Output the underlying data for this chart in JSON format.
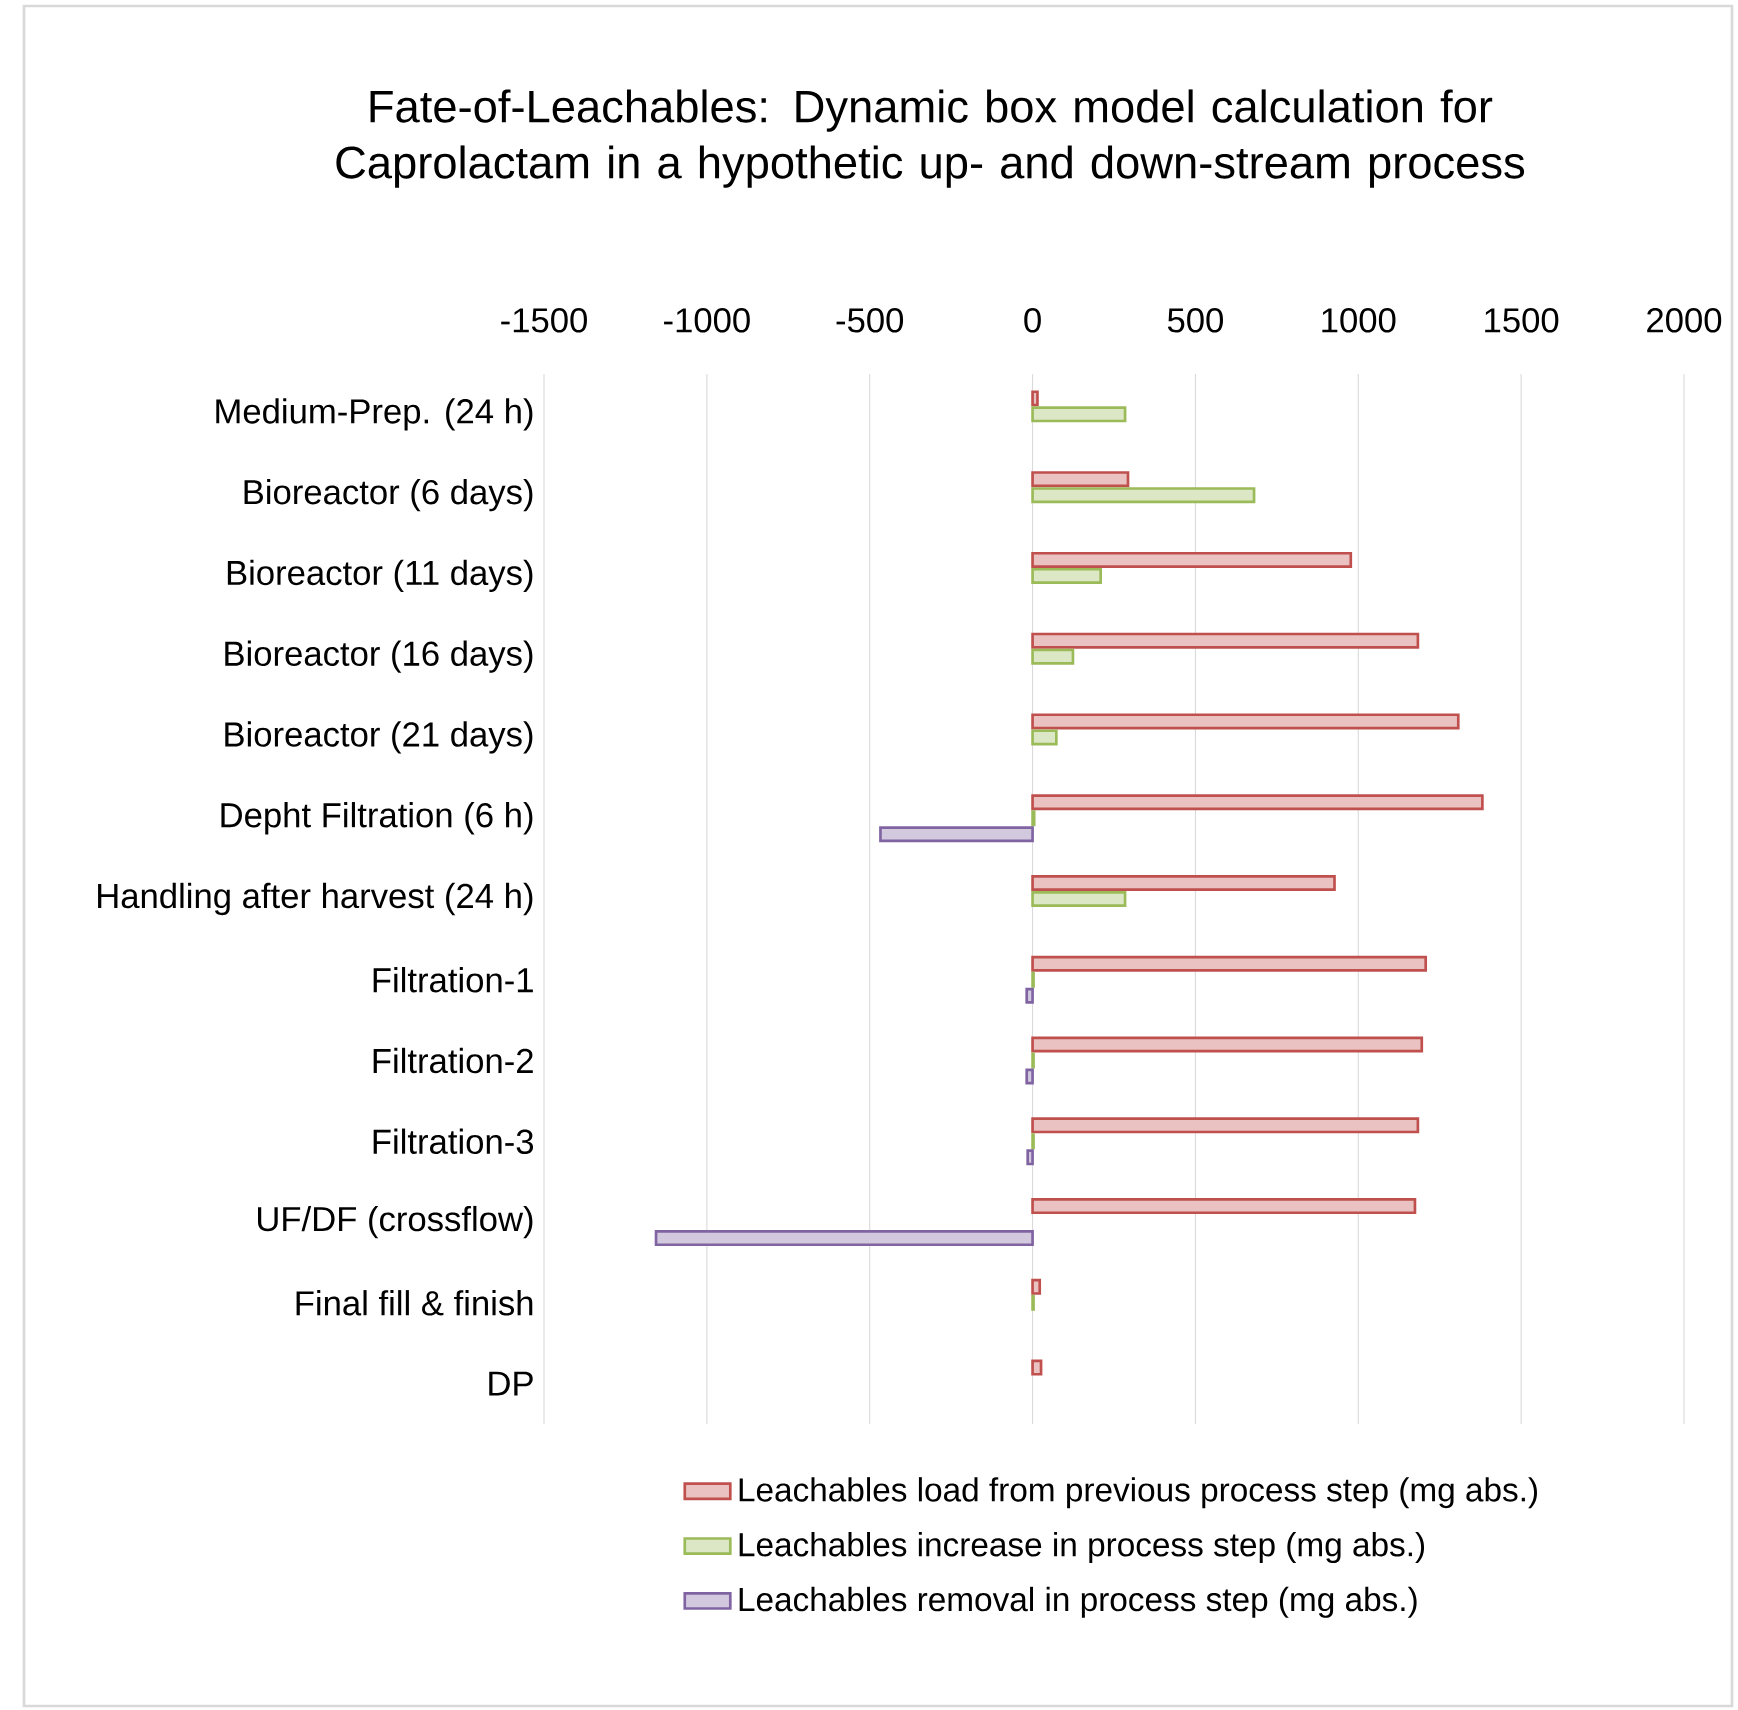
{
  "chart_data": {
    "type": "bar",
    "orientation": "horizontal",
    "title": "Fate-of-Leachables: Dynamic box model calculation for Caprolactam in a hypothetic up- and down-stream process",
    "categories": [
      "Medium-Prep. (24 h)",
      "Bioreactor (6 days)",
      "Bioreactor (11 days)",
      "Bioreactor (16 days)",
      "Bioreactor (21 days)",
      "Depht Filtration (6 h)",
      "Handling after harvest (24 h)",
      "Filtration-1",
      "Filtration-2",
      "Filtration-3",
      "UF/DF (crossflow)",
      "Final fill & finish",
      "DP"
    ],
    "series": [
      {
        "name": "Leachables load from previous process step (mg abs.)",
        "color": "#c0504d",
        "values": [
          15,
          293,
          977,
          1183,
          1307,
          1381,
          927,
          1207,
          1195,
          1183,
          1174,
          22,
          26
        ]
      },
      {
        "name": "Leachables increase in process step (mg abs.)",
        "color": "#9bbb59",
        "values": [
          284,
          680,
          209,
          124,
          73,
          5,
          284,
          3,
          3,
          3,
          null,
          3,
          null
        ]
      },
      {
        "name": "Leachables removal in process step (mg abs.)",
        "color": "#8064a2",
        "values": [
          null,
          null,
          null,
          null,
          null,
          -467,
          null,
          -18,
          -18,
          -15,
          -1156,
          null,
          null
        ]
      }
    ],
    "xlim": [
      -1500,
      2000
    ],
    "xticks": [
      -1500,
      -1000,
      -500,
      0,
      500,
      1000,
      1500,
      2000
    ],
    "grid": "x",
    "legend": "bottom"
  }
}
